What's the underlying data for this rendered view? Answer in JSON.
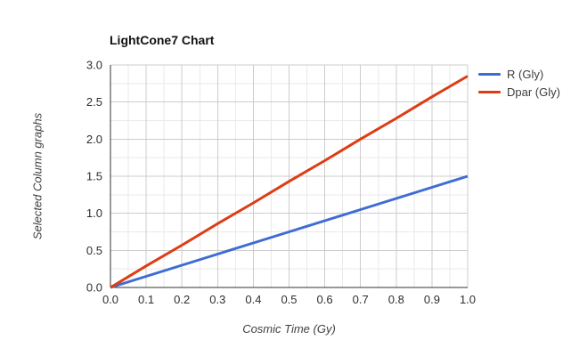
{
  "style": {
    "background": "#ffffff",
    "title_color": "#111111",
    "tick_label_color": "#2f2f2f",
    "axis_title_color": "#404040",
    "legend_text_color": "#3c3c3c",
    "axis_line_color": "#333333",
    "grid_major_color": "#cccccc",
    "grid_minor_color": "#eaeaea",
    "series_blue": "#3f6cd3",
    "series_red": "#dd3d14"
  },
  "chart_data": {
    "type": "line",
    "title": "LightCone7 Chart",
    "xlabel": "Cosmic Time (Gy)",
    "ylabel": "Selected Column graphs",
    "x": [
      0,
      0.1,
      0.2,
      0.3,
      0.4,
      0.5,
      0.6,
      0.7,
      0.8,
      0.9,
      1.0
    ],
    "series": [
      {
        "name": "R (Gly)",
        "color": "#3f6cd3",
        "values": [
          0,
          0.15,
          0.3,
          0.45,
          0.6,
          0.75,
          0.9,
          1.05,
          1.2,
          1.35,
          1.5
        ]
      },
      {
        "name": "Dpar (Gly)",
        "color": "#dd3d14",
        "values": [
          0,
          0.29,
          0.57,
          0.86,
          1.14,
          1.43,
          1.71,
          2.0,
          2.28,
          2.57,
          2.85
        ]
      }
    ],
    "xlim": [
      0,
      1
    ],
    "ylim": [
      0,
      3
    ],
    "x_tick_labels": [
      "0.0",
      "0.1",
      "0.2",
      "0.3",
      "0.4",
      "0.5",
      "0.6",
      "0.7",
      "0.8",
      "0.9",
      "1.0"
    ],
    "y_tick_labels": [
      "0.0",
      "0.5",
      "1.0",
      "1.5",
      "2.0",
      "2.5",
      "3.0"
    ],
    "x_minor_per_major": 2,
    "y_minor_per_major": 2,
    "grid": true,
    "legend_position": "right",
    "line_width": 3
  }
}
